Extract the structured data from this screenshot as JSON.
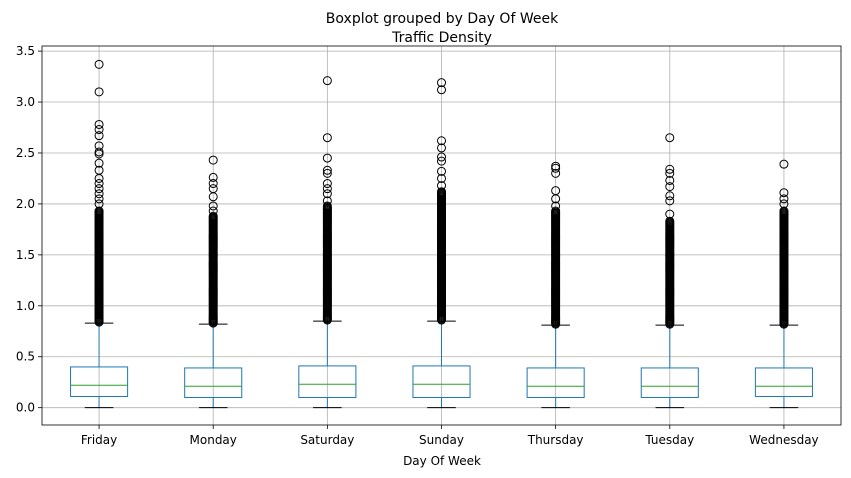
{
  "chart_data": {
    "type": "boxplot",
    "suptitle": "Boxplot grouped by Day Of Week",
    "title": "Traffic Density",
    "xlabel": "Day Of Week",
    "ylabel": "",
    "ylim": [
      -0.17,
      3.55
    ],
    "yticks": [
      0.0,
      0.5,
      1.0,
      1.5,
      2.0,
      2.5,
      3.0,
      3.5
    ],
    "ytick_labels": [
      "0.0",
      "0.5",
      "1.0",
      "1.5",
      "2.0",
      "2.5",
      "3.0",
      "3.5"
    ],
    "grid": true,
    "colors": {
      "box": "#1f77b4",
      "median": "#2ca02c",
      "whisker": "#1f77b4",
      "cap": "#000000",
      "flier": "#000000",
      "grid": "#b0b0b0"
    },
    "categories": [
      "Friday",
      "Monday",
      "Saturday",
      "Sunday",
      "Thursday",
      "Tuesday",
      "Wednesday"
    ],
    "boxes": [
      {
        "category": "Friday",
        "min": 0.0,
        "q1": 0.11,
        "median": 0.22,
        "q3": 0.4,
        "whisker_high": 0.83,
        "dense_fliers_to": 1.93,
        "fliers": [
          2.0,
          2.05,
          2.1,
          2.15,
          2.2,
          2.25,
          2.33,
          2.4,
          2.49,
          2.51,
          2.57,
          2.67,
          2.73,
          2.78,
          3.1,
          3.37
        ]
      },
      {
        "category": "Monday",
        "min": 0.0,
        "q1": 0.1,
        "median": 0.21,
        "q3": 0.39,
        "whisker_high": 0.82,
        "dense_fliers_to": 1.88,
        "fliers": [
          1.93,
          1.98,
          2.07,
          2.15,
          2.2,
          2.26,
          2.43
        ]
      },
      {
        "category": "Saturday",
        "min": 0.0,
        "q1": 0.1,
        "median": 0.23,
        "q3": 0.41,
        "whisker_high": 0.85,
        "dense_fliers_to": 1.98,
        "fliers": [
          2.03,
          2.1,
          2.15,
          2.2,
          2.3,
          2.33,
          2.45,
          2.65,
          3.21
        ]
      },
      {
        "category": "Sunday",
        "min": 0.0,
        "q1": 0.1,
        "median": 0.23,
        "q3": 0.41,
        "whisker_high": 0.85,
        "dense_fliers_to": 2.12,
        "fliers": [
          2.18,
          2.25,
          2.32,
          2.42,
          2.46,
          2.55,
          2.62,
          3.12,
          3.19
        ]
      },
      {
        "category": "Thursday",
        "min": 0.0,
        "q1": 0.1,
        "median": 0.21,
        "q3": 0.39,
        "whisker_high": 0.81,
        "dense_fliers_to": 1.93,
        "fliers": [
          1.98,
          2.05,
          2.13,
          2.3,
          2.35,
          2.37
        ]
      },
      {
        "category": "Tuesday",
        "min": 0.0,
        "q1": 0.1,
        "median": 0.21,
        "q3": 0.39,
        "whisker_high": 0.81,
        "dense_fliers_to": 1.83,
        "fliers": [
          1.9,
          2.03,
          2.08,
          2.17,
          2.23,
          2.3,
          2.34,
          2.65
        ]
      },
      {
        "category": "Wednesday",
        "min": 0.0,
        "q1": 0.11,
        "median": 0.21,
        "q3": 0.39,
        "whisker_high": 0.81,
        "dense_fliers_to": 1.93,
        "fliers": [
          2.0,
          2.05,
          2.11,
          2.39
        ]
      }
    ]
  }
}
